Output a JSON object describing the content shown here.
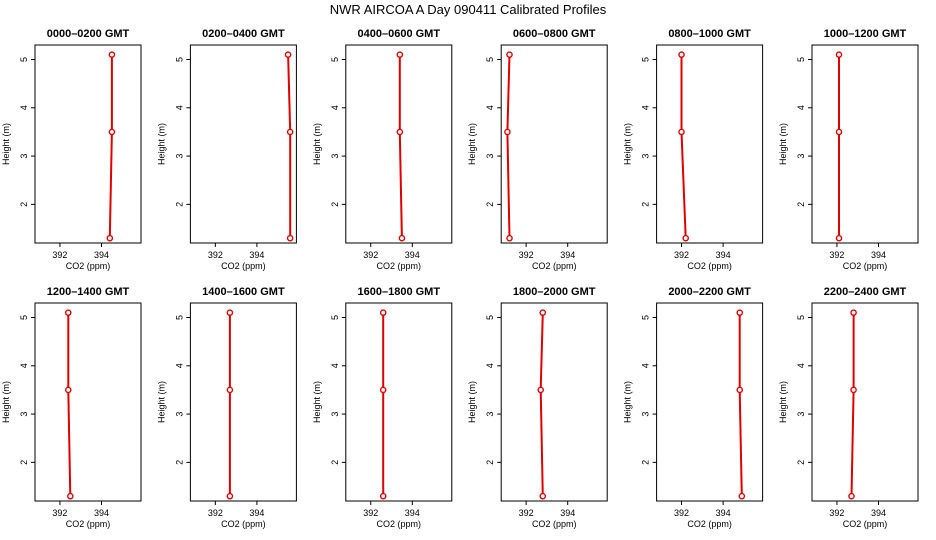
{
  "figure": {
    "title": "NWR AIRCOA A  Day 090411  Calibrated Profiles"
  },
  "colors": {
    "profile": "#e00000",
    "axis": "#000000"
  },
  "chart_data": [
    {
      "type": "line",
      "title": "0000–0200 GMT",
      "xlabel": "CO2 (ppm)",
      "ylabel": "Height (m)",
      "xlim": [
        390.8,
        395.9
      ],
      "ylim": [
        1.2,
        5.3
      ],
      "xticks": [
        392,
        394
      ],
      "yticks": [
        2,
        3,
        4,
        5
      ],
      "series": [
        {
          "x": [
            394.4,
            394.5,
            394.5
          ],
          "y": [
            1.3,
            3.5,
            5.1
          ]
        }
      ]
    },
    {
      "type": "line",
      "title": "0200–0400 GMT",
      "xlabel": "CO2 (ppm)",
      "ylabel": "Height (m)",
      "xlim": [
        390.8,
        395.9
      ],
      "ylim": [
        1.2,
        5.3
      ],
      "xticks": [
        392,
        394
      ],
      "yticks": [
        2,
        3,
        4,
        5
      ],
      "series": [
        {
          "x": [
            395.6,
            395.6,
            395.5
          ],
          "y": [
            1.3,
            3.5,
            5.1
          ]
        }
      ]
    },
    {
      "type": "line",
      "title": "0400–0600 GMT",
      "xlabel": "CO2 (ppm)",
      "ylabel": "Height (m)",
      "xlim": [
        390.8,
        395.9
      ],
      "ylim": [
        1.2,
        5.3
      ],
      "xticks": [
        392,
        394
      ],
      "yticks": [
        2,
        3,
        4,
        5
      ],
      "series": [
        {
          "x": [
            393.5,
            393.4,
            393.4
          ],
          "y": [
            1.3,
            3.5,
            5.1
          ]
        }
      ]
    },
    {
      "type": "line",
      "title": "0600–0800 GMT",
      "xlabel": "CO2 (ppm)",
      "ylabel": "Height (m)",
      "xlim": [
        390.8,
        395.9
      ],
      "ylim": [
        1.2,
        5.3
      ],
      "xticks": [
        392,
        394
      ],
      "yticks": [
        2,
        3,
        4,
        5
      ],
      "series": [
        {
          "x": [
            391.2,
            391.1,
            391.2
          ],
          "y": [
            1.3,
            3.5,
            5.1
          ]
        }
      ]
    },
    {
      "type": "line",
      "title": "0800–1000 GMT",
      "xlabel": "CO2 (ppm)",
      "ylabel": "Height (m)",
      "xlim": [
        390.8,
        395.9
      ],
      "ylim": [
        1.2,
        5.3
      ],
      "xticks": [
        392,
        394
      ],
      "yticks": [
        2,
        3,
        4,
        5
      ],
      "series": [
        {
          "x": [
            392.2,
            392.0,
            392.0
          ],
          "y": [
            1.3,
            3.5,
            5.1
          ]
        }
      ]
    },
    {
      "type": "line",
      "title": "1000–1200 GMT",
      "xlabel": "CO2 (ppm)",
      "ylabel": "Height (m)",
      "xlim": [
        390.8,
        395.9
      ],
      "ylim": [
        1.2,
        5.3
      ],
      "xticks": [
        392,
        394
      ],
      "yticks": [
        2,
        3,
        4,
        5
      ],
      "series": [
        {
          "x": [
            392.1,
            392.1,
            392.1
          ],
          "y": [
            1.3,
            3.5,
            5.1
          ]
        }
      ]
    },
    {
      "type": "line",
      "title": "1200–1400 GMT",
      "xlabel": "CO2 (ppm)",
      "ylabel": "Height (m)",
      "xlim": [
        390.8,
        395.9
      ],
      "ylim": [
        1.2,
        5.3
      ],
      "xticks": [
        392,
        394
      ],
      "yticks": [
        2,
        3,
        4,
        5
      ],
      "series": [
        {
          "x": [
            392.5,
            392.4,
            392.4
          ],
          "y": [
            1.3,
            3.5,
            5.1
          ]
        }
      ]
    },
    {
      "type": "line",
      "title": "1400–1600 GMT",
      "xlabel": "CO2 (ppm)",
      "ylabel": "Height (m)",
      "xlim": [
        390.8,
        395.9
      ],
      "ylim": [
        1.2,
        5.3
      ],
      "xticks": [
        392,
        394
      ],
      "yticks": [
        2,
        3,
        4,
        5
      ],
      "series": [
        {
          "x": [
            392.7,
            392.7,
            392.7
          ],
          "y": [
            1.3,
            3.5,
            5.1
          ]
        }
      ]
    },
    {
      "type": "line",
      "title": "1600–1800 GMT",
      "xlabel": "CO2 (ppm)",
      "ylabel": "Height (m)",
      "xlim": [
        390.8,
        395.9
      ],
      "ylim": [
        1.2,
        5.3
      ],
      "xticks": [
        392,
        394
      ],
      "yticks": [
        2,
        3,
        4,
        5
      ],
      "series": [
        {
          "x": [
            392.6,
            392.6,
            392.6
          ],
          "y": [
            1.3,
            3.5,
            5.1
          ]
        }
      ]
    },
    {
      "type": "line",
      "title": "1800–2000 GMT",
      "xlabel": "CO2 (ppm)",
      "ylabel": "Height (m)",
      "xlim": [
        390.8,
        395.9
      ],
      "ylim": [
        1.2,
        5.3
      ],
      "xticks": [
        392,
        394
      ],
      "yticks": [
        2,
        3,
        4,
        5
      ],
      "series": [
        {
          "x": [
            392.8,
            392.7,
            392.8
          ],
          "y": [
            1.3,
            3.5,
            5.1
          ]
        }
      ]
    },
    {
      "type": "line",
      "title": "2000–2200 GMT",
      "xlabel": "CO2 (ppm)",
      "ylabel": "Height (m)",
      "xlim": [
        390.8,
        395.9
      ],
      "ylim": [
        1.2,
        5.3
      ],
      "xticks": [
        392,
        394
      ],
      "yticks": [
        2,
        3,
        4,
        5
      ],
      "series": [
        {
          "x": [
            394.9,
            394.8,
            394.8
          ],
          "y": [
            1.3,
            3.5,
            5.1
          ]
        }
      ]
    },
    {
      "type": "line",
      "title": "2200–2400 GMT",
      "xlabel": "CO2 (ppm)",
      "ylabel": "Height (m)",
      "xlim": [
        390.8,
        395.9
      ],
      "ylim": [
        1.2,
        5.3
      ],
      "xticks": [
        392,
        394
      ],
      "yticks": [
        2,
        3,
        4,
        5
      ],
      "series": [
        {
          "x": [
            392.7,
            392.8,
            392.8
          ],
          "y": [
            1.3,
            3.5,
            5.1
          ]
        }
      ]
    }
  ]
}
